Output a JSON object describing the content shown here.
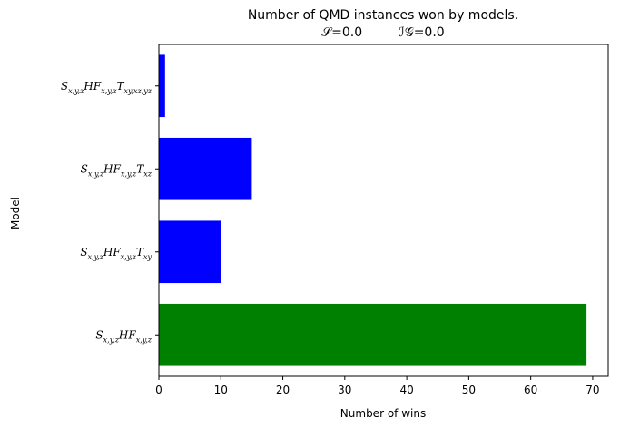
{
  "chart_data": {
    "type": "bar",
    "orientation": "horizontal",
    "title": "Number of QMD instances won by models.",
    "subtitle": {
      "s_label": "𝒮",
      "s_value": "=0.0",
      "ig_label": "ℐ𝒢",
      "ig_value": "=0.0"
    },
    "xlabel": "Number of wins",
    "ylabel": "Model",
    "xlim": [
      0,
      72.5
    ],
    "xticks": [
      0,
      10,
      20,
      30,
      40,
      50,
      60,
      70
    ],
    "grid": false,
    "categories": [
      {
        "base": "S",
        "sub1": "x,y,z",
        "mid": "HF",
        "sub2": "x,y,z",
        "tail": "",
        "sub3": ""
      },
      {
        "base": "S",
        "sub1": "x,y,z",
        "mid": "HF",
        "sub2": "x,y,z",
        "tail": "T",
        "sub3": "xy"
      },
      {
        "base": "S",
        "sub1": "x,y,z",
        "mid": "HF",
        "sub2": "x,y,z",
        "tail": "T",
        "sub3": "xz"
      },
      {
        "base": "S",
        "sub1": "x,y,z",
        "mid": "HF",
        "sub2": "x,y,z",
        "tail": "T",
        "sub3": "xy,xz,yz"
      }
    ],
    "values": [
      69,
      10,
      15,
      1
    ],
    "colors": [
      "#008000",
      "#0000ff",
      "#0000ff",
      "#0000ff"
    ]
  }
}
